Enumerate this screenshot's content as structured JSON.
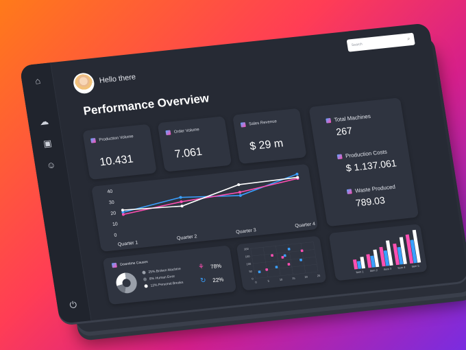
{
  "header": {
    "greeting": "Hello there",
    "search_placeholder": "Search"
  },
  "page_title": "Performance Overview",
  "kpis": [
    {
      "label": "Production Volume",
      "value": "10.431"
    },
    {
      "label": "Order Volume",
      "value": "7.061"
    },
    {
      "label": "Sales Revenue",
      "value": "$ 29 m"
    }
  ],
  "side_stats": [
    {
      "label": "Total Machines",
      "value": "267"
    },
    {
      "label": "Production Costs",
      "value": "$ 1.137.061"
    },
    {
      "label": "Waste Produced",
      "value": "789.03"
    }
  ],
  "downtime": {
    "title": "Downtime Causes",
    "items": [
      {
        "label": "25% Broken Machine",
        "color": "#9aa0aa"
      },
      {
        "label": "8% Human Error",
        "color": "#6f7580"
      },
      {
        "label": "12% Personal Breaks",
        "color": "#ffffff"
      }
    ],
    "stats": [
      {
        "icon": "share-icon",
        "value": "78%",
        "color": "#ff4fb2"
      },
      {
        "icon": "refresh-icon",
        "value": "22%",
        "color": "#3aa0ff"
      }
    ]
  },
  "colors": {
    "pink": "#ff4fb2",
    "blue": "#3aa0ff",
    "white": "#ffffff"
  },
  "chart_data": [
    {
      "type": "line",
      "categories": [
        "Quarter 1",
        "Quarter 2",
        "Quarter 3",
        "Quarter 4"
      ],
      "yticks": [
        0,
        10,
        20,
        30,
        40
      ],
      "ylim": [
        0,
        40
      ],
      "series": [
        {
          "values": [
            20,
            28,
            24,
            38
          ],
          "color": "#3aa0ff"
        },
        {
          "values": [
            18,
            24,
            27,
            34
          ],
          "color": "#ff4fb2"
        },
        {
          "values": [
            22,
            20,
            34,
            35
          ],
          "color": "#ffffff"
        }
      ]
    },
    {
      "type": "scatter",
      "xticks": [
        0,
        5,
        10,
        15,
        20,
        25
      ],
      "yticks": [
        0,
        50,
        100,
        150,
        200
      ],
      "series": [
        {
          "color": "#3aa0ff",
          "points": [
            [
              2,
              40
            ],
            [
              9,
              60
            ],
            [
              13,
              130
            ],
            [
              15,
              170
            ],
            [
              19,
              90
            ]
          ]
        },
        {
          "color": "#ff4fb2",
          "points": [
            [
              5,
              50
            ],
            [
              8,
              140
            ],
            [
              12,
              120
            ],
            [
              14,
              70
            ],
            [
              20,
              150
            ]
          ]
        }
      ]
    },
    {
      "type": "bar",
      "categories": [
        "Item 1",
        "Item 2",
        "Item 3",
        "Item 4",
        "Item 5"
      ],
      "series": [
        {
          "color": "#ff4fb2",
          "values": [
            10,
            14,
            20,
            22,
            30
          ]
        },
        {
          "color": "#3aa0ff",
          "values": [
            8,
            12,
            16,
            18,
            24
          ]
        },
        {
          "color": "#ffffff",
          "values": [
            12,
            18,
            26,
            28,
            34
          ]
        }
      ]
    }
  ]
}
